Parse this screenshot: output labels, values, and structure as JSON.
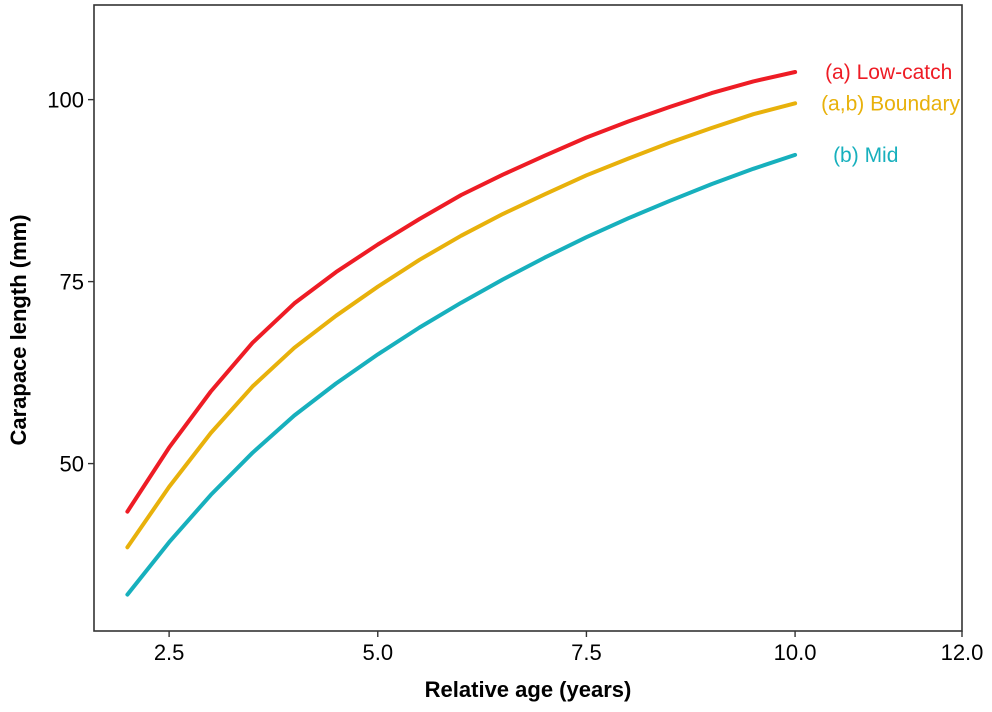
{
  "chart_data": {
    "type": "line",
    "xlabel": "Relative age (years)",
    "ylabel": "Carapace length (mm)",
    "xlim": [
      1.6,
      12.0
    ],
    "ylim": [
      27,
      113
    ],
    "x_ticks": [
      2.5,
      5.0,
      7.5,
      10.0,
      12.0
    ],
    "x_tick_labels": [
      "2.5",
      "5.0",
      "7.5",
      "10.0",
      "12.0"
    ],
    "y_ticks": [
      50,
      75,
      100
    ],
    "y_tick_labels": [
      "50",
      "75",
      "100"
    ],
    "grid": false,
    "legend": "direct labels at line ends",
    "x": [
      2.0,
      2.5,
      3.0,
      3.5,
      4.0,
      4.5,
      5.0,
      5.5,
      6.0,
      6.5,
      7.0,
      7.5,
      8.0,
      8.5,
      9.0,
      9.5,
      10.0
    ],
    "series": [
      {
        "name": "(a) Low-catch",
        "color": "#ee1c25",
        "values": [
          43.4,
          52.2,
          59.9,
          66.6,
          72.0,
          76.3,
          80.1,
          83.6,
          86.9,
          89.7,
          92.3,
          94.8,
          97.0,
          99.0,
          100.9,
          102.5,
          103.8
        ]
      },
      {
        "name": "(a,b) Boundary",
        "color": "#e8b10b",
        "values": [
          38.5,
          46.8,
          54.2,
          60.6,
          65.9,
          70.3,
          74.3,
          78.0,
          81.3,
          84.3,
          87.0,
          89.6,
          91.9,
          94.1,
          96.1,
          98.0,
          99.5
        ]
      },
      {
        "name": "(b) Mid",
        "color": "#17b0bd",
        "values": [
          32.0,
          39.2,
          45.7,
          51.5,
          56.6,
          61.0,
          65.0,
          68.7,
          72.1,
          75.3,
          78.3,
          81.1,
          83.7,
          86.1,
          88.4,
          90.5,
          92.4
        ]
      }
    ]
  }
}
